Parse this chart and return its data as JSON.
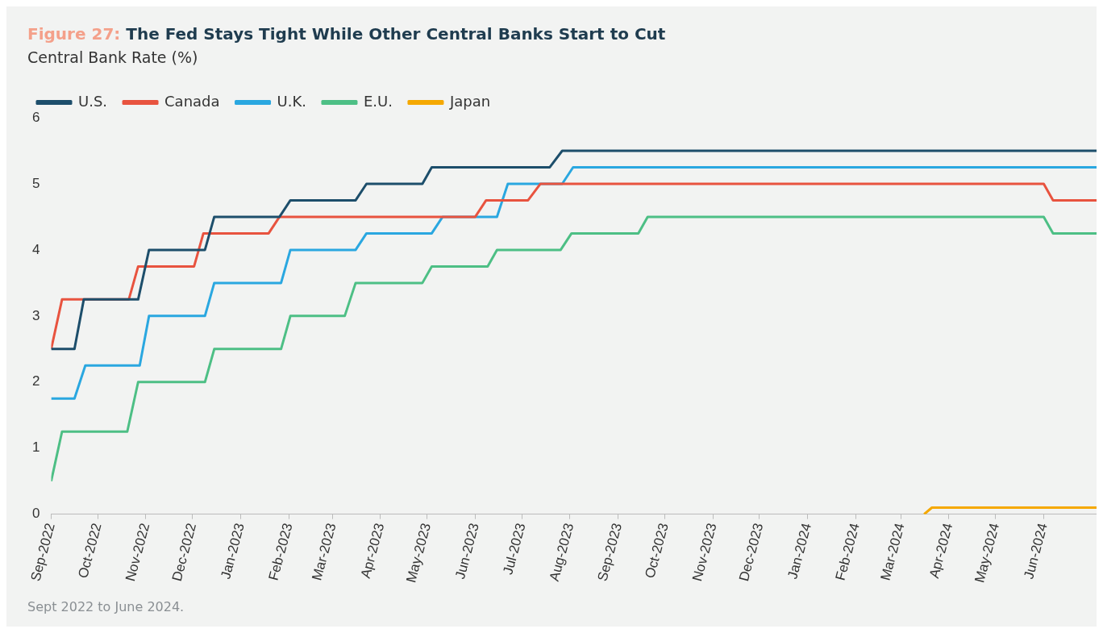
{
  "chart_data": {
    "type": "line",
    "title": "Figure 27: The Fed Stays Tight While Other Central Banks Start to Cut",
    "subtitle": "Central Bank Rate (%)",
    "series": [
      {
        "name": "U.S.",
        "color": "#1d4e6b",
        "x": [
          "2022-09-01",
          "2022-09-16",
          "2022-09-22",
          "2022-10-27",
          "2022-11-03",
          "2022-12-09",
          "2022-12-15",
          "2023-01-26",
          "2023-02-02",
          "2023-03-16",
          "2023-03-23",
          "2023-04-28",
          "2023-05-04",
          "2023-07-19",
          "2023-07-27",
          "2024-07-05"
        ],
        "values": [
          2.5,
          2.5,
          3.25,
          3.25,
          4.0,
          4.0,
          4.5,
          4.5,
          4.75,
          4.75,
          5.0,
          5.0,
          5.25,
          5.25,
          5.5,
          5.5
        ]
      },
      {
        "name": "Canada",
        "color": "#e8533f",
        "x": [
          "2022-09-01",
          "2022-09-08",
          "2022-10-21",
          "2022-10-27",
          "2022-12-02",
          "2022-12-08",
          "2023-01-19",
          "2023-01-26",
          "2023-06-01",
          "2023-06-08",
          "2023-07-05",
          "2023-07-13",
          "2024-06-01",
          "2024-06-07",
          "2024-07-05"
        ],
        "values": [
          2.5,
          3.25,
          3.25,
          3.75,
          3.75,
          4.25,
          4.25,
          4.5,
          4.5,
          4.75,
          4.75,
          5.0,
          5.0,
          4.75,
          4.75
        ]
      },
      {
        "name": "U.K.",
        "color": "#2aa7e0",
        "x": [
          "2022-09-01",
          "2022-09-16",
          "2022-09-23",
          "2022-10-28",
          "2022-11-03",
          "2022-12-09",
          "2022-12-15",
          "2023-01-27",
          "2023-02-02",
          "2023-03-16",
          "2023-03-23",
          "2023-05-04",
          "2023-05-11",
          "2023-06-15",
          "2023-06-22",
          "2023-07-27",
          "2023-08-03",
          "2024-07-05"
        ],
        "values": [
          1.75,
          1.75,
          2.25,
          2.25,
          3.0,
          3.0,
          3.5,
          3.5,
          4.0,
          4.0,
          4.25,
          4.25,
          4.5,
          4.5,
          5.0,
          5.0,
          5.25,
          5.25
        ]
      },
      {
        "name": "E.U.",
        "color": "#4dbf85",
        "x": [
          "2022-09-01",
          "2022-09-08",
          "2022-10-20",
          "2022-10-27",
          "2022-12-09",
          "2022-12-15",
          "2023-01-27",
          "2023-02-02",
          "2023-03-09",
          "2023-03-16",
          "2023-04-28",
          "2023-05-04",
          "2023-06-09",
          "2023-06-15",
          "2023-07-26",
          "2023-08-02",
          "2023-09-14",
          "2023-09-20",
          "2024-06-01",
          "2024-06-07",
          "2024-07-05"
        ],
        "values": [
          0.5,
          1.25,
          1.25,
          2.0,
          2.0,
          2.5,
          2.5,
          3.0,
          3.0,
          3.5,
          3.5,
          3.75,
          3.75,
          4.0,
          4.0,
          4.25,
          4.25,
          4.5,
          4.5,
          4.25,
          4.25
        ]
      },
      {
        "name": "Japan",
        "color": "#f5a800",
        "x": [
          "2024-03-16",
          "2024-03-21",
          "2024-07-05"
        ],
        "values": [
          0,
          0.1,
          0.1
        ]
      }
    ],
    "xlim": [
      "2022-09-01",
      "2024-07-05"
    ],
    "xticks": [
      {
        "value": "2022-09-01",
        "label": "Sep-2022"
      },
      {
        "value": "2022-10-01",
        "label": "Oct-2022"
      },
      {
        "value": "2022-11-01",
        "label": "Nov-2022"
      },
      {
        "value": "2022-12-01",
        "label": "Dec-2022"
      },
      {
        "value": "2023-01-01",
        "label": "Jan-2023"
      },
      {
        "value": "2023-02-01",
        "label": "Feb-2023"
      },
      {
        "value": "2023-03-01",
        "label": "Mar-2023"
      },
      {
        "value": "2023-04-01",
        "label": "Apr-2023"
      },
      {
        "value": "2023-05-01",
        "label": "May-2023"
      },
      {
        "value": "2023-06-01",
        "label": "Jun-2023"
      },
      {
        "value": "2023-07-01",
        "label": "Jul-2023"
      },
      {
        "value": "2023-08-01",
        "label": "Aug-2023"
      },
      {
        "value": "2023-09-01",
        "label": "Sep-2023"
      },
      {
        "value": "2023-10-01",
        "label": "Oct-2023"
      },
      {
        "value": "2023-11-01",
        "label": "Nov-2023"
      },
      {
        "value": "2023-12-01",
        "label": "Dec-2023"
      },
      {
        "value": "2024-01-01",
        "label": "Jan-2024"
      },
      {
        "value": "2024-02-01",
        "label": "Feb-2024"
      },
      {
        "value": "2024-03-01",
        "label": "Mar-2024"
      },
      {
        "value": "2024-04-01",
        "label": "Apr-2024"
      },
      {
        "value": "2024-05-01",
        "label": "May-2024"
      },
      {
        "value": "2024-06-01",
        "label": "Jun-2024"
      }
    ],
    "ylim": [
      0,
      6
    ],
    "yticks": [
      0,
      1,
      2,
      3,
      4,
      5,
      6
    ],
    "grid": false,
    "legend": "top left",
    "marker": "none",
    "line_style": "solid",
    "annotations": [
      "Sept 2022 to June 2024."
    ]
  }
}
